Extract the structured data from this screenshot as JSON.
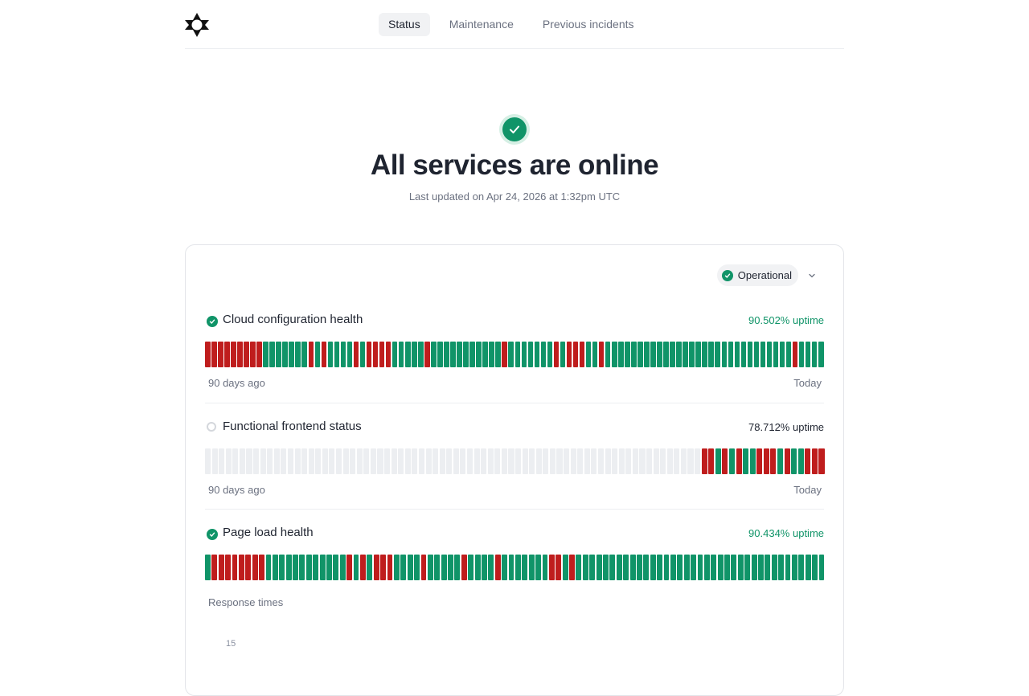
{
  "nav": {
    "tabs": [
      {
        "label": "Status",
        "active": true
      },
      {
        "label": "Maintenance",
        "active": false
      },
      {
        "label": "Previous incidents",
        "active": false
      }
    ]
  },
  "hero": {
    "title": "All services are online",
    "subtitle": "Last updated on Apr 24, 2026 at 1:32pm UTC",
    "icon": "check-circle-icon"
  },
  "status_filter": {
    "label": "Operational",
    "icon": "check-circle-icon",
    "chevron": "chevron-down-icon"
  },
  "colors": {
    "operational": "#109468",
    "outage": "#bf1d1d",
    "nodata": "#eceef1"
  },
  "services": [
    {
      "name": "Cloud configuration health",
      "uptime": "90.502% uptime",
      "status": "operational",
      "range_start": "90 days ago",
      "range_end": "Today",
      "days": "rrrrrrrrrgggggggrgrggggrgrrrrgggggrgggggggggggrgggggggrgrrrggrgggggggggggggggggggggggggggggrgggg"
    },
    {
      "name": "Functional frontend status",
      "uptime": "78.712% uptime",
      "status": "nodata",
      "range_start": "90 days ago",
      "range_end": "Today",
      "days": "nnnnnnnnnnnnnnnnnnnnnnnnnnnnnnnnnnnnnnnnnnnnnnnnnnnnnnnnnnnnnnnnnnnnnnnnrrgrgrggrrrgrggrrr"
    },
    {
      "name": "Page load health",
      "uptime": "90.434% uptime",
      "status": "operational",
      "range_start": "",
      "range_end": "",
      "days": "grrrrrrrrggggggggggggrgrgrrrggggrgggggrggggrgggggggrrgrggggggggggggggggggggggggggggggggggggg"
    }
  ],
  "response_times": {
    "label": "Response times",
    "first_tick": "15"
  }
}
